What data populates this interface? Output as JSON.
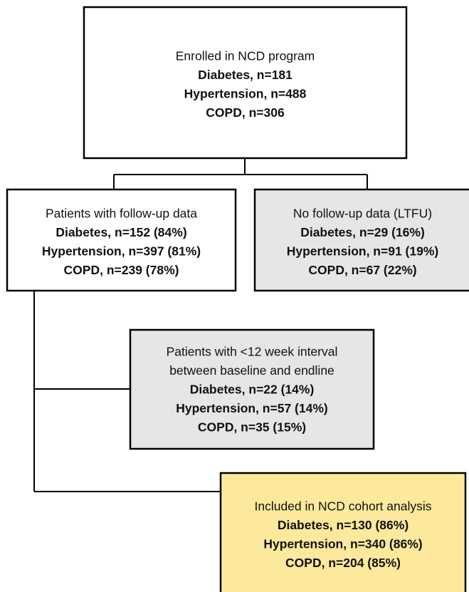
{
  "nodes": [
    {
      "title": [
        "Enrolled in NCD program"
      ],
      "counts": [
        "Diabetes, n=181",
        "Hypertension, n=488",
        "COPD, n=306"
      ]
    },
    {
      "title": [
        "Patients with follow-up data"
      ],
      "counts": [
        "Diabetes, n=152 (84%)",
        "Hypertension, n=397 (81%)",
        "COPD, n=239 (78%)"
      ]
    },
    {
      "title": [
        "No follow-up data (LTFU)"
      ],
      "counts": [
        "Diabetes, n=29 (16%)",
        "Hypertension, n=91 (19%)",
        "COPD, n=67 (22%)"
      ]
    },
    {
      "title": [
        "Patients with <12 week interval",
        "between baseline and endline"
      ],
      "counts": [
        "Diabetes, n=22 (14%)",
        "Hypertension, n=57 (14%)",
        "COPD, n=35 (15%)"
      ]
    },
    {
      "title": [
        "Included in NCD cohort analysis"
      ],
      "counts": [
        "Diabetes, n=130 (86%)",
        "Hypertension, n=340 (86%)",
        "COPD, n=204 (85%)"
      ]
    }
  ]
}
